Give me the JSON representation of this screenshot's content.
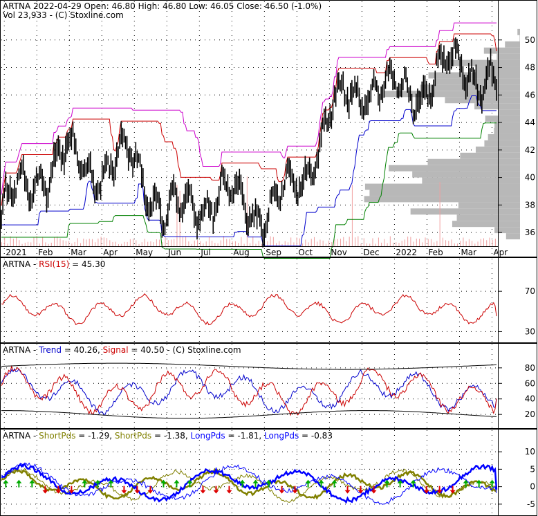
{
  "header": {
    "main": "ARTNA  2022-04-29 Open: 46.80  High: 46.80  Low: 46.05  Close: 46.50 (-1.0%)",
    "volume": "Vol 23,933  -  (C) Stoxline.com"
  },
  "panels": {
    "rsi": {
      "prefix": "ARTNA - ",
      "name": "RSI(15)",
      "value_text": " = 45.30"
    },
    "trend": {
      "prefix": "ARTNA - ",
      "trend_name": "Trend",
      "trend_value": " = 40.26, ",
      "signal_name": "Signal",
      "signal_value": " = 40.50  -  (C) Stoxline.com"
    },
    "pds": {
      "prefix": "ARTNA - ",
      "items": [
        {
          "name": "ShortPds",
          "value": " = -1.29, ",
          "color": "#808000"
        },
        {
          "name": "ShortPds",
          "value": " = -1.38, ",
          "color": "#808000"
        },
        {
          "name": "LongPds",
          "value": " = -1.81, ",
          "color": "#0000ff"
        },
        {
          "name": "LongPds",
          "value": " = -0.83",
          "color": "#0000ff"
        }
      ]
    }
  },
  "colors": {
    "price": "#000000",
    "upper_band": "#cc00cc",
    "red_band": "#cc0000",
    "blue_band": "#0000cc",
    "green_band": "#008000",
    "volume_profile": "#b8b8b8",
    "volume_bars": "#f0a0a0",
    "rsi_line": "#cc0000",
    "trend_line": "#0000cc",
    "signal_line": "#cc0000",
    "short_pds": "#808000",
    "long_pds": "#0000ff",
    "buy_arrow": "#00aa00",
    "sell_arrow": "#dd0000"
  },
  "chart_data": [
    {
      "type": "candlestick",
      "title": "ARTNA",
      "x_labels": [
        "2021",
        "Feb",
        "Mar",
        "Apr",
        "May",
        "Jun",
        "Jul",
        "Aug",
        "Sep",
        "Oct",
        "Nov",
        "Dec",
        "2022",
        "Feb",
        "Mar",
        "Apr"
      ],
      "y_ticks": [
        36,
        38,
        40,
        42,
        44,
        46,
        48,
        50
      ],
      "ylim": [
        35.0,
        52.0
      ],
      "last": {
        "date": "2022-04-29",
        "open": 46.8,
        "high": 46.8,
        "low": 46.05,
        "close": 46.5,
        "change_pct": -1.0,
        "volume": 23933
      },
      "close_monthly": [
        {
          "x": "2021-01",
          "close": 37.5
        },
        {
          "x": "2021-02",
          "close": 40.0
        },
        {
          "x": "2021-03",
          "close": 41.5
        },
        {
          "x": "2021-04",
          "close": 40.5
        },
        {
          "x": "2021-05",
          "close": 41.5
        },
        {
          "x": "2021-06",
          "close": 37.0
        },
        {
          "x": "2021-07",
          "close": 38.5
        },
        {
          "x": "2021-08",
          "close": 38.5
        },
        {
          "x": "2021-09",
          "close": 37.5
        },
        {
          "x": "2021-10",
          "close": 39.5
        },
        {
          "x": "2021-11",
          "close": 44.5
        },
        {
          "x": "2021-12",
          "close": 47.0
        },
        {
          "x": "2022-01",
          "close": 46.0
        },
        {
          "x": "2022-02",
          "close": 47.0
        },
        {
          "x": "2022-03",
          "close": 48.5
        },
        {
          "x": "2022-04",
          "close": 46.5
        }
      ]
    },
    {
      "type": "line",
      "title": "RSI(15)",
      "y_ticks": [
        30,
        70
      ],
      "ylim": [
        20,
        90
      ],
      "last_value": 45.3
    },
    {
      "type": "line",
      "title": "Trend / Signal",
      "y_ticks": [
        20,
        40,
        60,
        80
      ],
      "ylim": [
        5,
        95
      ],
      "series": [
        {
          "name": "Trend",
          "last_value": 40.26
        },
        {
          "name": "Signal",
          "last_value": 40.5
        }
      ]
    },
    {
      "type": "line",
      "title": "ShortPds / LongPds",
      "y_ticks": [
        -5,
        0,
        5,
        10
      ],
      "ylim": [
        -8,
        13
      ],
      "series": [
        {
          "name": "ShortPds",
          "last_value": -1.29
        },
        {
          "name": "ShortPds",
          "last_value": -1.38
        },
        {
          "name": "LongPds",
          "last_value": -1.81
        },
        {
          "name": "LongPds",
          "last_value": -0.83
        }
      ]
    }
  ]
}
